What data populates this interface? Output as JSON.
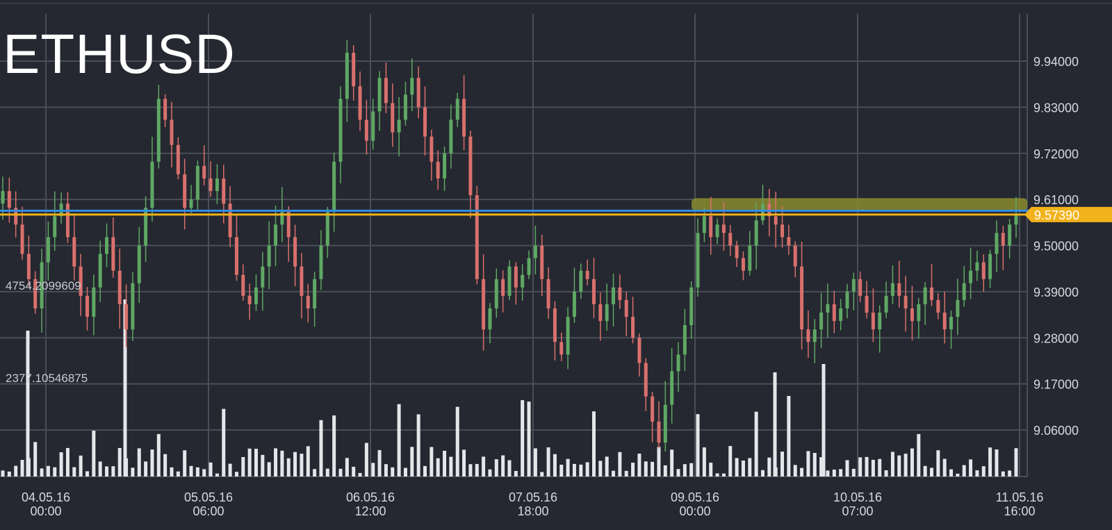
{
  "chart_data": {
    "type": "candlestick",
    "title": "ETHUSD",
    "symbol": "ETHUSD",
    "y_ticks": [
      "9.94000",
      "9.83000",
      "9.72000",
      "9.61000",
      "9.50000",
      "9.39000",
      "9.28000",
      "9.17000",
      "9.06000"
    ],
    "y_tick_values": [
      9.94,
      9.83,
      9.72,
      9.61,
      9.5,
      9.39,
      9.28,
      9.17,
      9.06
    ],
    "ylim": [
      8.975,
      10.016
    ],
    "x_ticks": [
      {
        "date": "04.05.16",
        "time": "00:00"
      },
      {
        "date": "05.05.16",
        "time": "06:00"
      },
      {
        "date": "06.05.16",
        "time": "12:00"
      },
      {
        "date": "07.05.16",
        "time": "18:00"
      },
      {
        "date": "09.05.16",
        "time": "00:00"
      },
      {
        "date": "10.05.16",
        "time": "07:00"
      },
      {
        "date": "11.05.16",
        "time": "16:00"
      }
    ],
    "current_price": "9.57390",
    "current_price_value": 9.5739,
    "blue_line_value": 9.583,
    "highlight_band": [
      9.583,
      9.613
    ],
    "volume_labels": [
      "4754.2099609",
      "2377.10546875"
    ],
    "volume_max": 4754.21,
    "closes": [
      9.63,
      9.59,
      9.55,
      9.48,
      9.42,
      9.35,
      9.46,
      9.52,
      9.57,
      9.6,
      9.52,
      9.45,
      9.38,
      9.33,
      9.4,
      9.48,
      9.52,
      9.44,
      9.36,
      9.3,
      9.41,
      9.5,
      9.59,
      9.7,
      9.85,
      9.8,
      9.74,
      9.67,
      9.59,
      9.61,
      9.69,
      9.66,
      9.63,
      9.66,
      9.6,
      9.52,
      9.43,
      9.38,
      9.36,
      9.4,
      9.45,
      9.5,
      9.55,
      9.58,
      9.52,
      9.45,
      9.38,
      9.35,
      9.42,
      9.5,
      9.58,
      9.7,
      9.85,
      9.96,
      9.88,
      9.8,
      9.75,
      9.82,
      9.9,
      9.84,
      9.77,
      9.8,
      9.86,
      9.9,
      9.83,
      9.76,
      9.7,
      9.66,
      9.72,
      9.8,
      9.85,
      9.76,
      9.62,
      9.42,
      9.3,
      9.35,
      9.42,
      9.38,
      9.45,
      9.4,
      9.43,
      9.47,
      9.5,
      9.42,
      9.35,
      9.27,
      9.24,
      9.33,
      9.39,
      9.44,
      9.42,
      9.36,
      9.32,
      9.36,
      9.4,
      9.37,
      9.33,
      9.28,
      9.22,
      9.14,
      9.08,
      9.03,
      9.12,
      9.2,
      9.24,
      9.31,
      9.4,
      9.53,
      9.57,
      9.52,
      9.55,
      9.53,
      9.5,
      9.47,
      9.44,
      9.5,
      9.56,
      9.6,
      9.57,
      9.55,
      9.52,
      9.5,
      9.45,
      9.3,
      9.27,
      9.3,
      9.34,
      9.36,
      9.32,
      9.35,
      9.39,
      9.42,
      9.38,
      9.34,
      9.3,
      9.34,
      9.38,
      9.41,
      9.38,
      9.35,
      9.32,
      9.36,
      9.4,
      9.37,
      9.34,
      9.3,
      9.33,
      9.37,
      9.41,
      9.44,
      9.46,
      9.42,
      9.48,
      9.53,
      9.5,
      9.55,
      9.574
    ]
  }
}
